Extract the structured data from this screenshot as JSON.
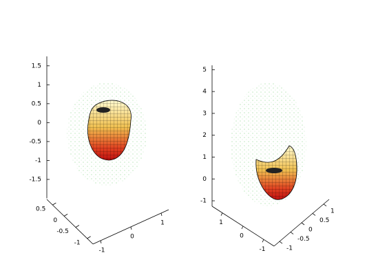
{
  "chart_data": [
    {
      "type": "surface3d",
      "zlim": [
        -2,
        1.75
      ],
      "zticks": [
        1.5,
        1,
        0.5,
        0,
        -0.5,
        -1,
        -1.5
      ],
      "ylim": [
        -1.25,
        0.75
      ],
      "yticks": [
        0.5,
        0,
        -0.5,
        -1
      ],
      "xlim": [
        -1.25,
        1.25
      ],
      "xticks": [
        -1,
        0,
        1
      ]
    },
    {
      "type": "surface3d",
      "zlim": [
        -1.25,
        5.2
      ],
      "zticks": [
        5,
        4,
        3,
        2,
        1,
        0,
        -1
      ],
      "xlim": [
        -1.5,
        1.5
      ],
      "xticks": [
        1,
        0,
        -1
      ],
      "ylim": [
        -1.25,
        1.25
      ],
      "yticks": [
        1,
        0.5,
        0,
        -0.5,
        -1
      ]
    }
  ]
}
